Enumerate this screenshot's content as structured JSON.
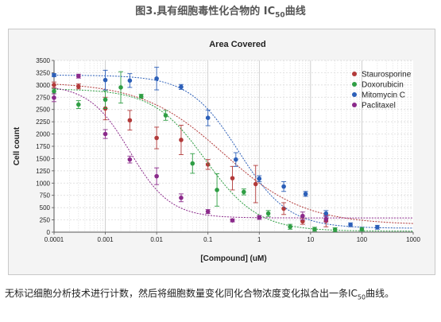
{
  "figure": {
    "title_main": "图3.具有细胞毒性化合物的 IC",
    "title_sub": "50",
    "title_tail": "曲线"
  },
  "caption": {
    "text_main": "无标记细胞分析技术进行计数，然后将细胞数量变化同化合物浓度变化拟合出一条IC",
    "text_sub": "50",
    "text_tail": "曲线。"
  },
  "chart_data": {
    "type": "scatter",
    "title": "Area Covered",
    "xlabel": "[Compound] (uM)",
    "ylabel": "Cell count",
    "x_scale": "log",
    "xlim": [
      0.0001,
      1000
    ],
    "ylim": [
      0,
      3500
    ],
    "x_ticks": [
      "0.0001",
      "0.001",
      "0.01",
      "0.1",
      "1",
      "10",
      "100",
      "1000"
    ],
    "y_ticks": [
      "0",
      "250",
      "500",
      "750",
      "1000",
      "1250",
      "1500",
      "1750",
      "2000",
      "2250",
      "2500",
      "2750",
      "3000",
      "3250",
      "3500"
    ],
    "grid": true,
    "legend_position": "right",
    "series": [
      {
        "name": "Staurosporine",
        "color": "#b23a3a",
        "points": [
          {
            "x": 0.0001,
            "y": 3000,
            "err": 60
          },
          {
            "x": 0.0003,
            "y": 2970,
            "err": 50
          },
          {
            "x": 0.001,
            "y": 2520,
            "err": 230
          },
          {
            "x": 0.003,
            "y": 2280,
            "err": 200
          },
          {
            "x": 0.01,
            "y": 1920,
            "err": 220
          },
          {
            "x": 0.03,
            "y": 1880,
            "err": 300
          },
          {
            "x": 0.1,
            "y": 1380,
            "err": 100
          },
          {
            "x": 0.3,
            "y": 1100,
            "err": 240
          },
          {
            "x": 0.85,
            "y": 980,
            "err": 380
          },
          {
            "x": 3,
            "y": 480,
            "err": 120
          },
          {
            "x": 7,
            "y": 220,
            "err": 60
          },
          {
            "x": 20,
            "y": 230,
            "err": 120
          }
        ],
        "fit": {
          "top": 3060,
          "bottom": 150,
          "ic50": 0.2,
          "hill": 0.55
        }
      },
      {
        "name": "Doxorubicin",
        "color": "#2f9e44",
        "points": [
          {
            "x": 0.0001,
            "y": 2870,
            "err": 50
          },
          {
            "x": 0.0003,
            "y": 2600,
            "err": 80
          },
          {
            "x": 0.001,
            "y": 2700,
            "err": 180
          },
          {
            "x": 0.002,
            "y": 2950,
            "err": 320
          },
          {
            "x": 0.005,
            "y": 2770,
            "err": 40
          },
          {
            "x": 0.015,
            "y": 2380,
            "err": 100
          },
          {
            "x": 0.05,
            "y": 1400,
            "err": 200
          },
          {
            "x": 0.15,
            "y": 860,
            "err": 330
          },
          {
            "x": 0.5,
            "y": 820,
            "err": 60
          },
          {
            "x": 1.5,
            "y": 380,
            "err": 60
          },
          {
            "x": 4,
            "y": 110,
            "err": 50
          },
          {
            "x": 12,
            "y": 60,
            "err": 40
          },
          {
            "x": 30,
            "y": 50,
            "err": 40
          },
          {
            "x": 100,
            "y": 60,
            "err": 40
          }
        ],
        "fit": {
          "top": 2920,
          "bottom": 20,
          "ic50": 0.09,
          "hill": 0.85
        }
      },
      {
        "name": "Mitomycin C",
        "color": "#2c5fb8",
        "points": [
          {
            "x": 0.0001,
            "y": 3200,
            "err": 30
          },
          {
            "x": 0.001,
            "y": 3100,
            "err": 200
          },
          {
            "x": 0.003,
            "y": 3090,
            "err": 140
          },
          {
            "x": 0.01,
            "y": 3130,
            "err": 230
          },
          {
            "x": 0.03,
            "y": 2960,
            "err": 50
          },
          {
            "x": 0.1,
            "y": 2330,
            "err": 160
          },
          {
            "x": 0.35,
            "y": 1480,
            "err": 140
          },
          {
            "x": 1,
            "y": 1090,
            "err": 60
          },
          {
            "x": 3,
            "y": 930,
            "err": 100
          },
          {
            "x": 8,
            "y": 780,
            "err": 50
          },
          {
            "x": 20,
            "y": 380,
            "err": 60
          },
          {
            "x": 60,
            "y": 150,
            "err": 40
          },
          {
            "x": 200,
            "y": 100,
            "err": 40
          }
        ],
        "fit": {
          "top": 3200,
          "bottom": 80,
          "ic50": 0.4,
          "hill": 0.9
        }
      },
      {
        "name": "Paclitaxel",
        "color": "#8b2a8b",
        "points": [
          {
            "x": 0.0001,
            "y": 2740,
            "err": 80
          },
          {
            "x": 0.0003,
            "y": 3180,
            "err": 40
          },
          {
            "x": 0.001,
            "y": 2000,
            "err": 90
          },
          {
            "x": 0.003,
            "y": 1480,
            "err": 70
          },
          {
            "x": 0.01,
            "y": 1140,
            "err": 170
          },
          {
            "x": 0.03,
            "y": 700,
            "err": 80
          },
          {
            "x": 0.1,
            "y": 420,
            "err": 40
          },
          {
            "x": 0.3,
            "y": 240,
            "err": 30
          },
          {
            "x": 1,
            "y": 300,
            "err": 40
          },
          {
            "x": 7,
            "y": 330,
            "err": 80
          },
          {
            "x": 20,
            "y": 270,
            "err": 60
          }
        ],
        "fit": {
          "top": 3000,
          "bottom": 290,
          "ic50": 0.003,
          "hill": 1.1
        }
      }
    ]
  }
}
